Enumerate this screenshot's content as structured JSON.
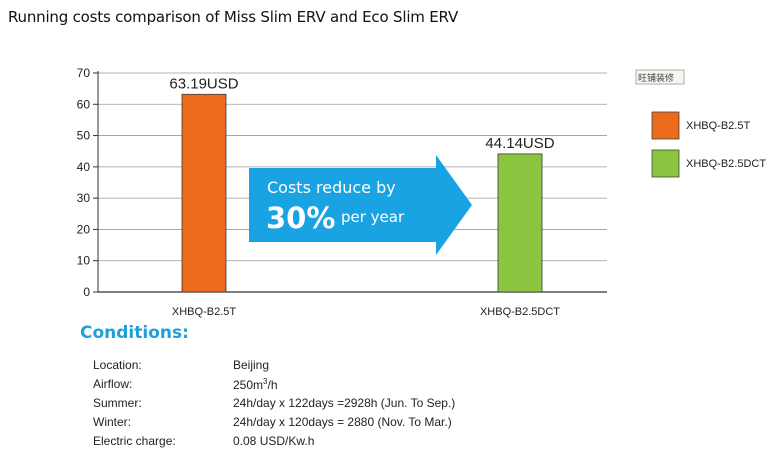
{
  "title": "Running costs comparison of Miss Slim ERV and Eco Slim ERV",
  "chart_data": {
    "type": "bar",
    "categories": [
      "XHBQ-B2.5T",
      "XHBQ-B2.5DCT"
    ],
    "values": [
      63.19,
      44.14
    ],
    "data_labels": [
      "63.19USD",
      "44.14USD"
    ],
    "colors": [
      "#ec6a1c",
      "#8bc53f"
    ],
    "ylim": [
      0,
      70
    ],
    "yticks": [
      0,
      10,
      20,
      30,
      40,
      50,
      60,
      70
    ],
    "grid": true,
    "legend": {
      "placement": "right",
      "items": [
        {
          "label": "XHBQ-B2.5T",
          "color": "#ec6a1c"
        },
        {
          "label": "XHBQ-B2.5DCT",
          "color": "#8bc53f"
        }
      ]
    },
    "annotation": {
      "line1": "Costs reduce by",
      "percent": "30%",
      "suffix": "per year",
      "color": "#1aa3e3"
    },
    "stamp": "旺铺装修"
  },
  "conditions": {
    "heading": "Conditions:",
    "rows": [
      {
        "key": "Location:",
        "value": "Beijing"
      },
      {
        "key": "Airflow:",
        "value_pre": "250m",
        "value_sup": "3",
        "value_post": "/h"
      },
      {
        "key": "Summer:",
        "value": "24h/day x 122days =2928h (Jun. To Sep.)"
      },
      {
        "key": "Winter:",
        "value": "24h/day x 120days = 2880 (Nov. To Mar.)"
      },
      {
        "key": "Electric charge:",
        "value": "0.08 USD/Kw.h"
      }
    ]
  }
}
